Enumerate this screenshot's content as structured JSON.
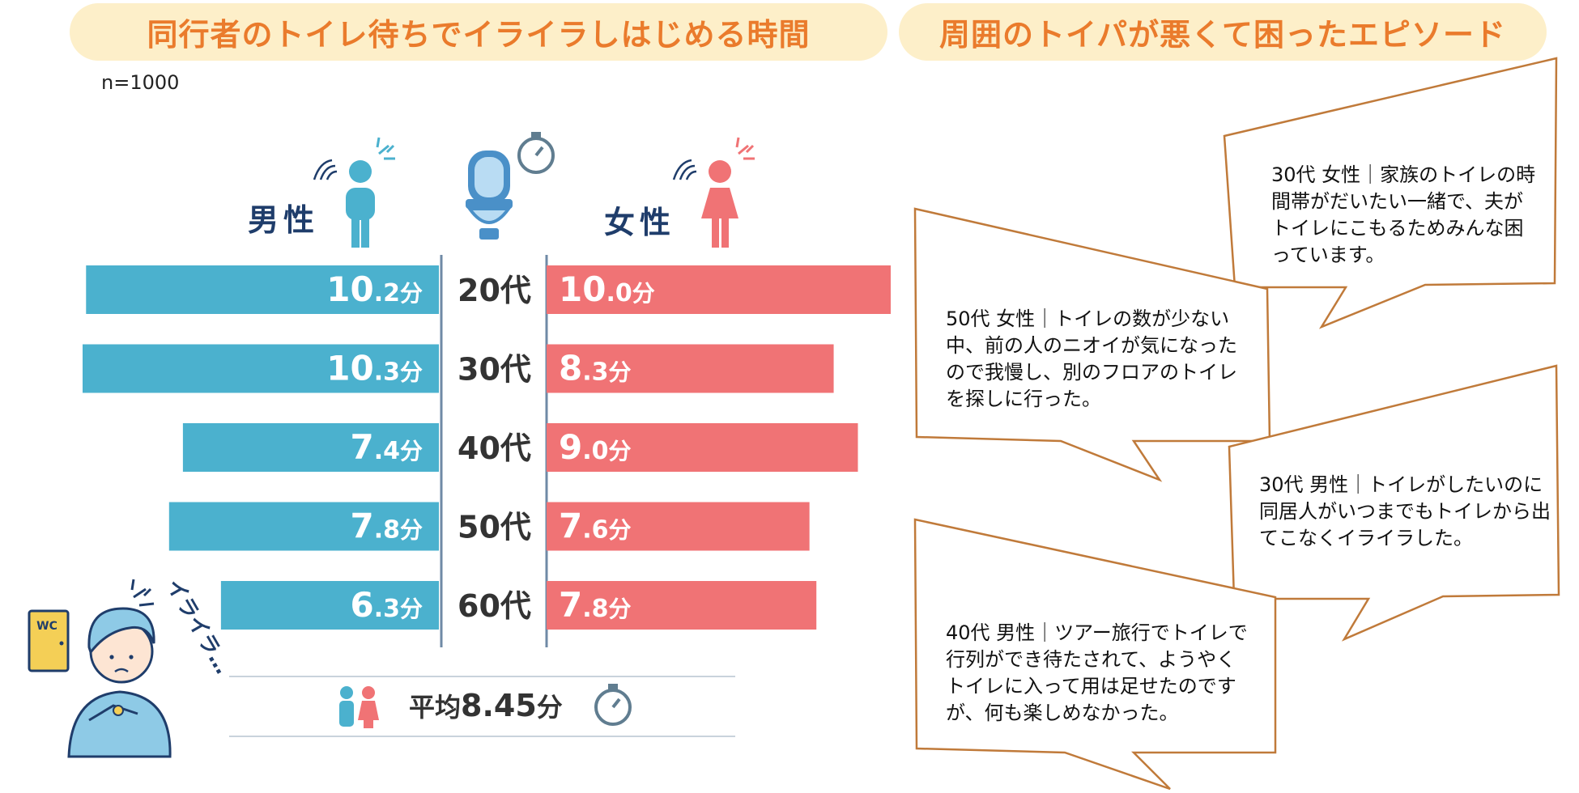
{
  "titles": {
    "left": "同行者のトイレ待ちでイライラしはじめる時間",
    "right": "周囲のトイパが悪くて困ったエピソード"
  },
  "sample_size": "n=1000",
  "chart_data": {
    "type": "bar",
    "orientation": "horizontal-butterfly",
    "title": "同行者のトイレ待ちでイライラしはじめる時間",
    "unit": "分",
    "categories": [
      "20代",
      "30代",
      "40代",
      "50代",
      "60代"
    ],
    "series": [
      {
        "name": "男性",
        "values": [
          10.2,
          10.3,
          7.4,
          7.8,
          6.3
        ],
        "color": "#4bb1ce"
      },
      {
        "name": "女性",
        "values": [
          10.0,
          8.3,
          9.0,
          7.6,
          7.8
        ],
        "color": "#f07375"
      }
    ],
    "xlim": [
      0,
      10.3
    ],
    "average_label": "平均",
    "average_value": "8.45",
    "average_unit": "分"
  },
  "illustration": {
    "wc_sign": "WC",
    "irairal_text": "イライラ…"
  },
  "episodes": [
    {
      "id": "30f",
      "text": "30代 女性｜家族のトイレの時間帯がだいたい一緒で、夫がトイレにこもるためみんな困っています。"
    },
    {
      "id": "50f",
      "text": "50代 女性｜トイレの数が少ない中、前の人のニオイが気になったので我慢し、別のフロアのトイレを探しに行った。"
    },
    {
      "id": "30m",
      "text": "30代 男性｜トイレがしたいのに同居人がいつまでもトイレから出てこなくイライラした。"
    },
    {
      "id": "40m",
      "text": "40代 男性｜ツアー旅行でトイレで行列ができ待たされて、ようやくトイレに入って用は足せたのですが、何も楽しめなかった。"
    }
  ],
  "colors": {
    "male": "#4bb1ce",
    "female": "#f07375",
    "title": "#ea7b2c",
    "banner": "#fdefc9",
    "bubble_border": "#c07a3a",
    "navy": "#1f3d6b"
  }
}
